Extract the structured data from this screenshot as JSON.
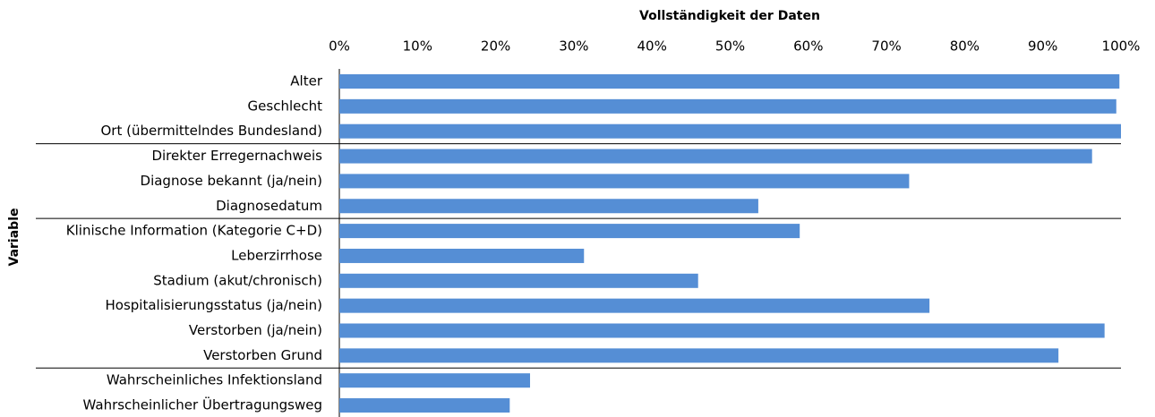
{
  "chart_data": {
    "type": "barh",
    "xlabel": "Vollständigkeit der Daten",
    "ylabel": "Variable",
    "categories": [
      "Alter",
      "Geschlecht",
      "Ort (übermittelndes Bundesland)",
      "Direkter Erregernachweis",
      "Diagnose bekannt (ja/nein)",
      "Diagnosedatum",
      "Klinische Information (Kategorie C+D)",
      "Leberzirrhose",
      "Stadium (akut/chronisch)",
      "Hospitalisierungsstatus (ja/nein)",
      "Verstorben (ja/nein)",
      "Verstorben Grund",
      "Wahrscheinliches Infektionsland",
      "Wahrscheinlicher Übertragungsweg"
    ],
    "values": [
      99.8,
      99.4,
      100,
      96.3,
      72.9,
      53.6,
      58.9,
      31.3,
      45.9,
      75.5,
      97.9,
      92,
      24.4,
      21.8
    ],
    "color": "#558ed5",
    "xlim": [
      0,
      100
    ],
    "xticks": [
      {
        "value": 0,
        "label": "0%"
      },
      {
        "value": 10,
        "label": "10%"
      },
      {
        "value": 20,
        "label": "20%"
      },
      {
        "value": 30,
        "label": "30%"
      },
      {
        "value": 40,
        "label": "40%"
      },
      {
        "value": 50,
        "label": "50%"
      },
      {
        "value": 60,
        "label": "60%"
      },
      {
        "value": 70,
        "label": "70%"
      },
      {
        "value": 80,
        "label": "80%"
      },
      {
        "value": 90,
        "label": "90%"
      },
      {
        "value": 100,
        "label": "100%"
      }
    ]
  }
}
